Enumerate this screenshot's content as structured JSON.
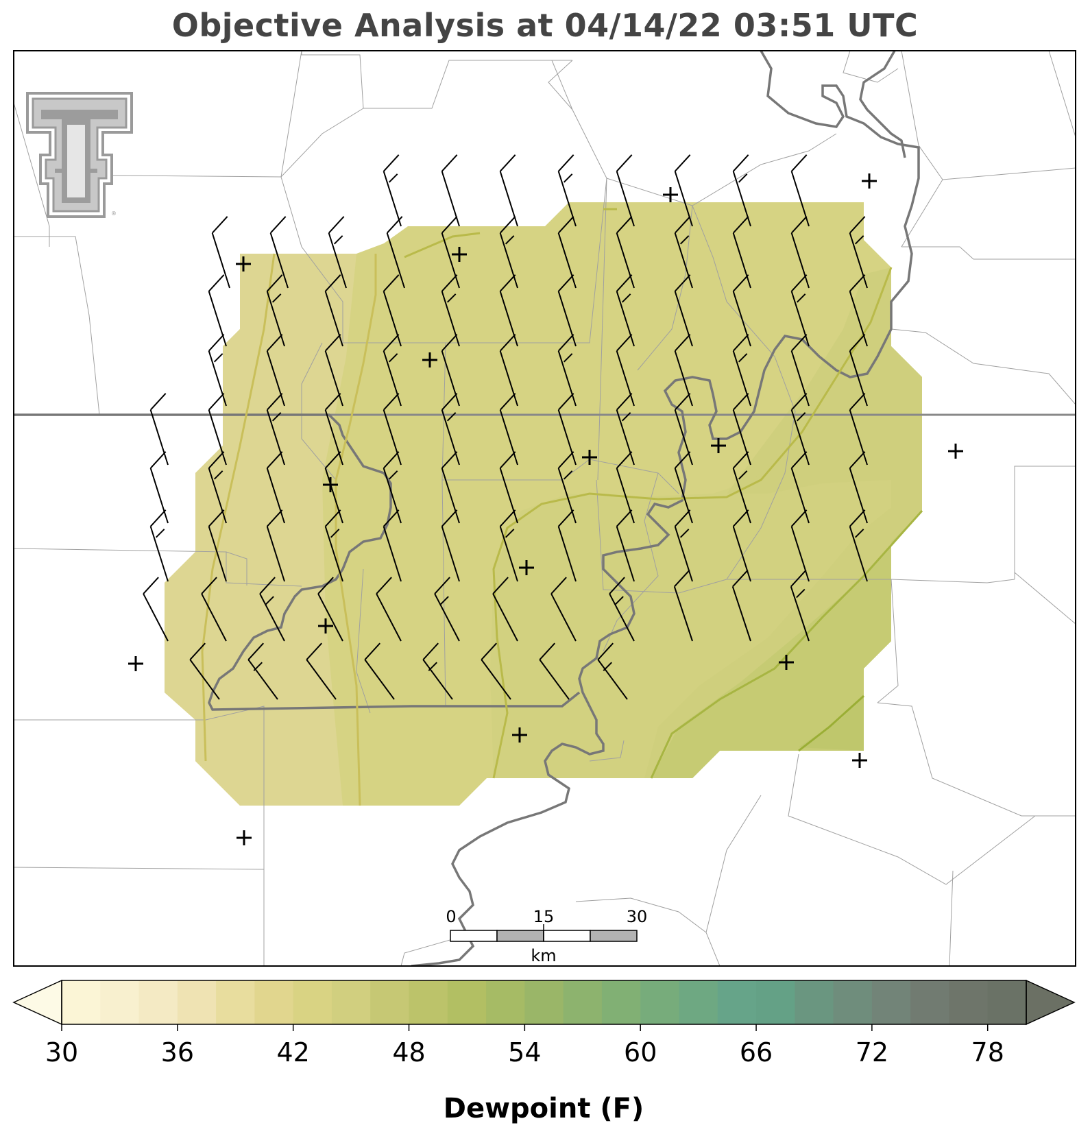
{
  "title": "Objective Analysis at 04/14/22 03:51 UTC",
  "colorbar": {
    "label": "Dewpoint (F)",
    "tick_labels": [
      "30",
      "36",
      "42",
      "48",
      "54",
      "60",
      "66",
      "72",
      "78"
    ],
    "colors": [
      "#fbf5d6",
      "#f8f0cf",
      "#f4eac4",
      "#efe3b3",
      "#e8dd9e",
      "#e1d68e",
      "#d9d383",
      "#d1cf7f",
      "#c6c874",
      "#bcc36a",
      "#b2bf63",
      "#a6bb65",
      "#9ab668",
      "#8db36e",
      "#81b074",
      "#77ac7b",
      "#6ea882",
      "#66a489",
      "#64a186",
      "#6a9680",
      "#6f8d7c",
      "#728478",
      "#717b71",
      "#6e756a",
      "#6a7266"
    ],
    "arrow_low_color": "#fdfae6",
    "arrow_high_color": "#6b7064"
  },
  "scale_bar": {
    "labels": [
      "0",
      "15",
      "30"
    ],
    "unit": "km"
  },
  "logo": {
    "text": "TT"
  },
  "map": {
    "shading_colors": [
      "#ddd692",
      "#d6d383",
      "#cfcf7d",
      "#c6cb73",
      "#bfc76c"
    ],
    "contour_colors": [
      "#c9bf5a",
      "#b9ba4a",
      "#a7b542",
      "#9aae35"
    ],
    "barb_color": "#000000",
    "station_marker_color": "#000000",
    "boundary_color": "#888888",
    "river_color": "#777777"
  }
}
